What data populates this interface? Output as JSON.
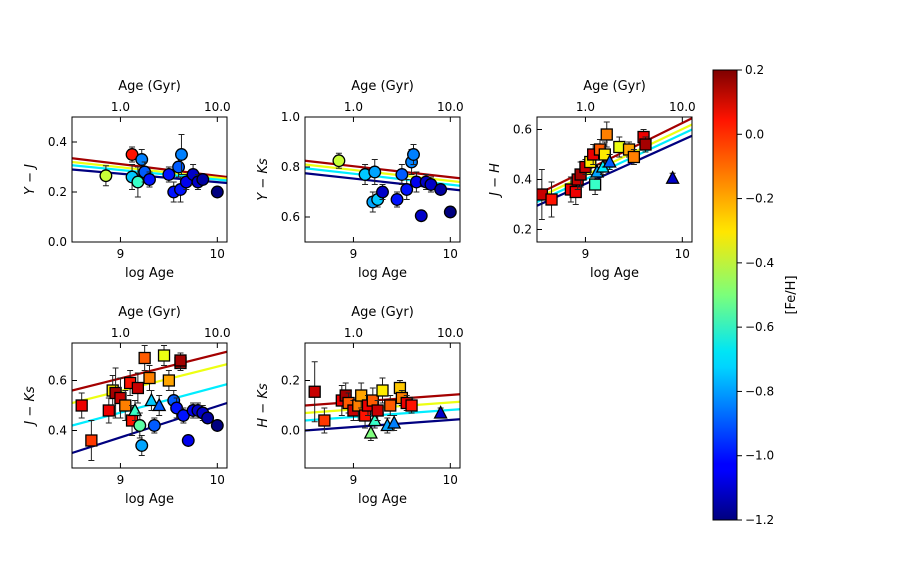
{
  "colorbar": {
    "label": "[Fe/H]",
    "min": -1.2,
    "max": 0.2,
    "ticks": [
      "0.2",
      "0.0",
      "−0.2",
      "−0.4",
      "−0.6",
      "−0.8",
      "−1.0",
      "−1.2"
    ]
  },
  "chart_data": [
    {
      "type": "scatter",
      "ylabel": "Y − J",
      "xlabel": "log Age",
      "top_xlabel": "Age (Gyr)",
      "xlim": [
        8.5,
        10.1
      ],
      "ylim": [
        0.0,
        0.5
      ],
      "xticks": [
        9,
        10
      ],
      "yticks": [
        "0.0",
        "0.2",
        "0.4"
      ],
      "top_ticks": [
        "1.0",
        "10.0"
      ],
      "lines": [
        {
          "feh": 0.15,
          "y0": 0.335,
          "y1": 0.26
        },
        {
          "feh": -0.35,
          "y0": 0.32,
          "y1": 0.253
        },
        {
          "feh": -0.7,
          "y0": 0.307,
          "y1": 0.246
        },
        {
          "feh": -1.2,
          "y0": 0.29,
          "y1": 0.236
        }
      ],
      "points": [
        {
          "x": 8.85,
          "y": 0.265,
          "feh": -0.4,
          "m": "circle",
          "e": 0.04
        },
        {
          "x": 9.12,
          "y": 0.35,
          "feh": 0.0,
          "m": "circle",
          "e": 0.03
        },
        {
          "x": 9.12,
          "y": 0.26,
          "feh": -0.75,
          "m": "circle",
          "e": 0.05
        },
        {
          "x": 9.18,
          "y": 0.24,
          "feh": -0.6,
          "m": "circle",
          "e": 0.06
        },
        {
          "x": 9.22,
          "y": 0.33,
          "feh": -0.85,
          "m": "circle",
          "e": 0.04
        },
        {
          "x": 9.25,
          "y": 0.28,
          "feh": -0.9,
          "m": "circle",
          "e": 0.04
        },
        {
          "x": 9.3,
          "y": 0.25,
          "feh": -1.0,
          "m": "circle",
          "e": 0.03
        },
        {
          "x": 9.5,
          "y": 0.27,
          "feh": -1.0,
          "m": "circle",
          "e": 0.03
        },
        {
          "x": 9.55,
          "y": 0.2,
          "feh": -1.0,
          "m": "circle",
          "e": 0.04
        },
        {
          "x": 9.6,
          "y": 0.3,
          "feh": -0.9,
          "m": "circle",
          "e": 0.04
        },
        {
          "x": 9.62,
          "y": 0.21,
          "feh": -1.0,
          "m": "circle",
          "e": 0.05
        },
        {
          "x": 9.63,
          "y": 0.35,
          "feh": -0.85,
          "m": "circle",
          "e": 0.08
        },
        {
          "x": 9.68,
          "y": 0.24,
          "feh": -1.05,
          "m": "circle",
          "e": 0.03
        },
        {
          "x": 9.75,
          "y": 0.27,
          "feh": -1.1,
          "m": "circle",
          "e": 0.04
        },
        {
          "x": 9.8,
          "y": 0.24,
          "feh": -1.1,
          "m": "circle",
          "e": 0.03
        },
        {
          "x": 9.85,
          "y": 0.25,
          "feh": -1.15,
          "m": "circle",
          "e": 0.02
        },
        {
          "x": 10.0,
          "y": 0.2,
          "feh": -1.2,
          "m": "circle",
          "e": 0.0
        }
      ]
    },
    {
      "type": "scatter",
      "ylabel": "Y − Ks",
      "xlabel": "log Age",
      "top_xlabel": "Age (Gyr)",
      "xlim": [
        8.5,
        10.1
      ],
      "ylim": [
        0.5,
        1.0
      ],
      "xticks": [
        9,
        10
      ],
      "yticks": [
        "0.6",
        "0.8",
        "1.0"
      ],
      "top_ticks": [
        "1.0",
        "10.0"
      ],
      "lines": [
        {
          "feh": 0.15,
          "y0": 0.825,
          "y1": 0.755
        },
        {
          "feh": -0.35,
          "y0": 0.81,
          "y1": 0.74
        },
        {
          "feh": -0.7,
          "y0": 0.795,
          "y1": 0.725
        },
        {
          "feh": -1.2,
          "y0": 0.775,
          "y1": 0.707
        }
      ],
      "points": [
        {
          "x": 8.85,
          "y": 0.825,
          "feh": -0.4,
          "m": "circle",
          "e": 0.03
        },
        {
          "x": 9.12,
          "y": 0.77,
          "feh": -0.75,
          "m": "circle",
          "e": 0.04
        },
        {
          "x": 9.2,
          "y": 0.66,
          "feh": -0.8,
          "m": "circle",
          "e": 0.04
        },
        {
          "x": 9.22,
          "y": 0.78,
          "feh": -0.8,
          "m": "circle",
          "e": 0.05
        },
        {
          "x": 9.25,
          "y": 0.67,
          "feh": -0.75,
          "m": "circle",
          "e": 0.03
        },
        {
          "x": 9.3,
          "y": 0.7,
          "feh": -1.1,
          "m": "circle",
          "e": 0.03
        },
        {
          "x": 9.45,
          "y": 0.67,
          "feh": -1.0,
          "m": "circle",
          "e": 0.03
        },
        {
          "x": 9.5,
          "y": 0.77,
          "feh": -0.9,
          "m": "circle",
          "e": 0.04
        },
        {
          "x": 9.55,
          "y": 0.71,
          "feh": -1.0,
          "m": "circle",
          "e": 0.04
        },
        {
          "x": 9.6,
          "y": 0.82,
          "feh": -0.85,
          "m": "circle",
          "e": 0.05
        },
        {
          "x": 9.62,
          "y": 0.85,
          "feh": -0.85,
          "m": "circle",
          "e": 0.04
        },
        {
          "x": 9.65,
          "y": 0.74,
          "feh": -1.05,
          "m": "circle",
          "e": 0.04
        },
        {
          "x": 9.7,
          "y": 0.605,
          "feh": -1.1,
          "m": "circle",
          "e": 0.02
        },
        {
          "x": 9.75,
          "y": 0.74,
          "feh": -1.1,
          "m": "circle",
          "e": 0.03
        },
        {
          "x": 9.8,
          "y": 0.73,
          "feh": -1.1,
          "m": "circle",
          "e": 0.03
        },
        {
          "x": 9.9,
          "y": 0.71,
          "feh": -1.15,
          "m": "circle",
          "e": 0.02
        },
        {
          "x": 10.0,
          "y": 0.62,
          "feh": -1.2,
          "m": "circle",
          "e": 0.0
        }
      ]
    },
    {
      "type": "scatter",
      "ylabel": "J − H",
      "xlabel": "log Age",
      "top_xlabel": "Age (Gyr)",
      "xlim": [
        8.5,
        10.1
      ],
      "ylim": [
        0.15,
        0.65
      ],
      "xticks": [
        9,
        10
      ],
      "yticks": [
        "0.2",
        "0.4",
        "0.6"
      ],
      "top_ticks": [
        "1.0",
        "10.0"
      ],
      "lines": [
        {
          "feh": 0.15,
          "y0": 0.34,
          "y1": 0.645
        },
        {
          "feh": -0.35,
          "y0": 0.325,
          "y1": 0.62
        },
        {
          "feh": -0.7,
          "y0": 0.31,
          "y1": 0.6
        },
        {
          "feh": -1.2,
          "y0": 0.295,
          "y1": 0.575
        }
      ],
      "points": [
        {
          "x": 8.55,
          "y": 0.34,
          "feh": 0.1,
          "m": "square",
          "e": 0.1
        },
        {
          "x": 8.65,
          "y": 0.32,
          "feh": 0.0,
          "m": "square",
          "e": 0.07
        },
        {
          "x": 8.85,
          "y": 0.36,
          "feh": 0.05,
          "m": "square",
          "e": 0.05
        },
        {
          "x": 8.9,
          "y": 0.35,
          "feh": 0.05,
          "m": "square",
          "e": 0.05
        },
        {
          "x": 8.92,
          "y": 0.4,
          "feh": 0.1,
          "m": "square",
          "e": 0.04
        },
        {
          "x": 8.95,
          "y": 0.42,
          "feh": 0.15,
          "m": "square",
          "e": 0.05
        },
        {
          "x": 9.0,
          "y": 0.45,
          "feh": 0.1,
          "m": "square",
          "e": 0.03
        },
        {
          "x": 9.05,
          "y": 0.47,
          "feh": -0.3,
          "m": "square",
          "e": 0.05
        },
        {
          "x": 9.08,
          "y": 0.5,
          "feh": 0.05,
          "m": "square",
          "e": 0.04
        },
        {
          "x": 9.1,
          "y": 0.38,
          "feh": -0.6,
          "m": "square",
          "e": 0.04
        },
        {
          "x": 9.12,
          "y": 0.43,
          "feh": -0.8,
          "m": "triangle",
          "e": 0.03
        },
        {
          "x": 9.15,
          "y": 0.52,
          "feh": -0.1,
          "m": "square",
          "e": 0.04
        },
        {
          "x": 9.18,
          "y": 0.45,
          "feh": -0.7,
          "m": "triangle",
          "e": 0.03
        },
        {
          "x": 9.2,
          "y": 0.5,
          "feh": -0.3,
          "m": "square",
          "e": 0.05
        },
        {
          "x": 9.22,
          "y": 0.58,
          "feh": -0.15,
          "m": "square",
          "e": 0.05
        },
        {
          "x": 9.25,
          "y": 0.47,
          "feh": -0.9,
          "m": "triangle",
          "e": 0.03
        },
        {
          "x": 9.35,
          "y": 0.53,
          "feh": -0.35,
          "m": "square",
          "e": 0.04
        },
        {
          "x": 9.45,
          "y": 0.52,
          "feh": -0.2,
          "m": "square",
          "e": 0.03
        },
        {
          "x": 9.5,
          "y": 0.49,
          "feh": -0.15,
          "m": "square",
          "e": 0.03
        },
        {
          "x": 9.6,
          "y": 0.57,
          "feh": 0.05,
          "m": "square",
          "e": 0.03
        },
        {
          "x": 9.62,
          "y": 0.54,
          "feh": 0.15,
          "m": "square",
          "e": 0.03
        },
        {
          "x": 9.9,
          "y": 0.405,
          "feh": -1.1,
          "m": "triangle",
          "e": 0.02
        }
      ]
    },
    {
      "type": "scatter",
      "ylabel": "J − Ks",
      "xlabel": "log Age",
      "top_xlabel": "Age (Gyr)",
      "xlim": [
        8.5,
        10.1
      ],
      "ylim": [
        0.25,
        0.75
      ],
      "xticks": [
        9,
        10
      ],
      "yticks": [
        "0.4",
        "0.6"
      ],
      "top_ticks": [
        "1.0",
        "10.0"
      ],
      "lines": [
        {
          "feh": 0.15,
          "y0": 0.56,
          "y1": 0.715
        },
        {
          "feh": -0.35,
          "y0": 0.51,
          "y1": 0.665
        },
        {
          "feh": -0.7,
          "y0": 0.42,
          "y1": 0.585
        },
        {
          "feh": -1.2,
          "y0": 0.31,
          "y1": 0.51
        }
      ],
      "points": [
        {
          "x": 8.6,
          "y": 0.5,
          "feh": 0.05,
          "m": "square",
          "e": 0.05
        },
        {
          "x": 8.7,
          "y": 0.36,
          "feh": -0.05,
          "m": "square",
          "e": 0.08
        },
        {
          "x": 8.88,
          "y": 0.48,
          "feh": 0.05,
          "m": "square",
          "e": 0.05
        },
        {
          "x": 8.92,
          "y": 0.56,
          "feh": -0.3,
          "m": "square",
          "e": 0.06
        },
        {
          "x": 8.95,
          "y": 0.55,
          "feh": 0.15,
          "m": "square",
          "e": 0.1
        },
        {
          "x": 9.0,
          "y": 0.53,
          "feh": 0.1,
          "m": "square",
          "e": 0.08
        },
        {
          "x": 9.05,
          "y": 0.5,
          "feh": -0.15,
          "m": "square",
          "e": 0.06
        },
        {
          "x": 9.1,
          "y": 0.59,
          "feh": 0.0,
          "m": "square",
          "e": 0.05
        },
        {
          "x": 9.12,
          "y": 0.44,
          "feh": 0.0,
          "m": "square",
          "e": 0.06
        },
        {
          "x": 9.15,
          "y": 0.48,
          "feh": -0.6,
          "m": "triangle",
          "e": 0.04
        },
        {
          "x": 9.18,
          "y": 0.57,
          "feh": 0.1,
          "m": "square",
          "e": 0.06
        },
        {
          "x": 9.2,
          "y": 0.42,
          "feh": -0.55,
          "m": "circle",
          "e": 0.05
        },
        {
          "x": 9.22,
          "y": 0.34,
          "feh": -0.8,
          "m": "circle",
          "e": 0.04
        },
        {
          "x": 9.25,
          "y": 0.69,
          "feh": -0.1,
          "m": "square",
          "e": 0.05
        },
        {
          "x": 9.3,
          "y": 0.61,
          "feh": -0.15,
          "m": "square",
          "e": 0.05
        },
        {
          "x": 9.32,
          "y": 0.52,
          "feh": -0.75,
          "m": "triangle",
          "e": 0.04
        },
        {
          "x": 9.35,
          "y": 0.42,
          "feh": -0.9,
          "m": "circle",
          "e": 0.03
        },
        {
          "x": 9.4,
          "y": 0.5,
          "feh": -0.9,
          "m": "triangle",
          "e": 0.04
        },
        {
          "x": 9.45,
          "y": 0.7,
          "feh": -0.35,
          "m": "square",
          "e": 0.04
        },
        {
          "x": 9.5,
          "y": 0.6,
          "feh": -0.2,
          "m": "square",
          "e": 0.04
        },
        {
          "x": 9.55,
          "y": 0.52,
          "feh": -0.9,
          "m": "circle",
          "e": 0.04
        },
        {
          "x": 9.58,
          "y": 0.49,
          "feh": -1.0,
          "m": "circle",
          "e": 0.04
        },
        {
          "x": 9.62,
          "y": 0.67,
          "feh": 0.1,
          "m": "square",
          "e": 0.03
        },
        {
          "x": 9.62,
          "y": 0.68,
          "feh": 0.15,
          "m": "square",
          "e": 0.03
        },
        {
          "x": 9.65,
          "y": 0.46,
          "feh": -1.0,
          "m": "circle",
          "e": 0.03
        },
        {
          "x": 9.7,
          "y": 0.36,
          "feh": -1.05,
          "m": "circle",
          "e": 0.02
        },
        {
          "x": 9.75,
          "y": 0.48,
          "feh": -1.05,
          "m": "circle",
          "e": 0.03
        },
        {
          "x": 9.8,
          "y": 0.48,
          "feh": -1.1,
          "m": "circle",
          "e": 0.03
        },
        {
          "x": 9.85,
          "y": 0.47,
          "feh": -1.1,
          "m": "circle",
          "e": 0.03
        },
        {
          "x": 9.9,
          "y": 0.45,
          "feh": -1.15,
          "m": "circle",
          "e": 0.02
        },
        {
          "x": 10.0,
          "y": 0.42,
          "feh": -1.2,
          "m": "circle",
          "e": 0.0
        }
      ]
    },
    {
      "type": "scatter",
      "ylabel": "H − Ks",
      "xlabel": "log Age",
      "top_xlabel": "Age (Gyr)",
      "xlim": [
        8.5,
        10.1
      ],
      "ylim": [
        -0.15,
        0.35
      ],
      "xticks": [
        9,
        10
      ],
      "yticks": [
        "0.0",
        "0.2"
      ],
      "top_ticks": [
        "1.0",
        "10.0"
      ],
      "lines": [
        {
          "feh": 0.15,
          "y0": 0.1,
          "y1": 0.145
        },
        {
          "feh": -0.35,
          "y0": 0.07,
          "y1": 0.115
        },
        {
          "feh": -0.7,
          "y0": 0.04,
          "y1": 0.085
        },
        {
          "feh": -1.2,
          "y0": 0.0,
          "y1": 0.045
        }
      ],
      "points": [
        {
          "x": 8.6,
          "y": 0.155,
          "feh": 0.1,
          "m": "square",
          "e": 0.12
        },
        {
          "x": 8.7,
          "y": 0.04,
          "feh": -0.05,
          "m": "square",
          "e": 0.05
        },
        {
          "x": 8.88,
          "y": 0.12,
          "feh": 0.05,
          "m": "square",
          "e": 0.06
        },
        {
          "x": 8.92,
          "y": 0.14,
          "feh": 0.15,
          "m": "square",
          "e": 0.05
        },
        {
          "x": 8.95,
          "y": 0.11,
          "feh": -0.1,
          "m": "square",
          "e": 0.04
        },
        {
          "x": 9.0,
          "y": 0.08,
          "feh": 0.1,
          "m": "square",
          "e": 0.04
        },
        {
          "x": 9.05,
          "y": 0.1,
          "feh": -0.15,
          "m": "square",
          "e": 0.06
        },
        {
          "x": 9.08,
          "y": 0.14,
          "feh": -0.2,
          "m": "square",
          "e": 0.05
        },
        {
          "x": 9.12,
          "y": 0.06,
          "feh": 0.0,
          "m": "square",
          "e": 0.05
        },
        {
          "x": 9.15,
          "y": 0.1,
          "feh": 0.05,
          "m": "square",
          "e": 0.04
        },
        {
          "x": 9.18,
          "y": -0.01,
          "feh": -0.5,
          "m": "triangle",
          "e": 0.03
        },
        {
          "x": 9.2,
          "y": 0.12,
          "feh": -0.1,
          "m": "square",
          "e": 0.05
        },
        {
          "x": 9.22,
          "y": 0.04,
          "feh": -0.6,
          "m": "triangle",
          "e": 0.03
        },
        {
          "x": 9.25,
          "y": 0.08,
          "feh": 0.1,
          "m": "square",
          "e": 0.04
        },
        {
          "x": 9.3,
          "y": 0.16,
          "feh": -0.3,
          "m": "square",
          "e": 0.05
        },
        {
          "x": 9.35,
          "y": 0.02,
          "feh": -0.8,
          "m": "triangle",
          "e": 0.03
        },
        {
          "x": 9.38,
          "y": 0.1,
          "feh": -0.1,
          "m": "square",
          "e": 0.04
        },
        {
          "x": 9.42,
          "y": 0.03,
          "feh": -0.85,
          "m": "triangle",
          "e": 0.03
        },
        {
          "x": 9.48,
          "y": 0.17,
          "feh": -0.25,
          "m": "square",
          "e": 0.03
        },
        {
          "x": 9.5,
          "y": 0.13,
          "feh": -0.15,
          "m": "square",
          "e": 0.03
        },
        {
          "x": 9.55,
          "y": 0.11,
          "feh": 0.05,
          "m": "square",
          "e": 0.03
        },
        {
          "x": 9.6,
          "y": 0.1,
          "feh": 0.0,
          "m": "square",
          "e": 0.03
        },
        {
          "x": 9.9,
          "y": 0.07,
          "feh": -1.1,
          "m": "triangle",
          "e": 0.02
        }
      ]
    }
  ]
}
